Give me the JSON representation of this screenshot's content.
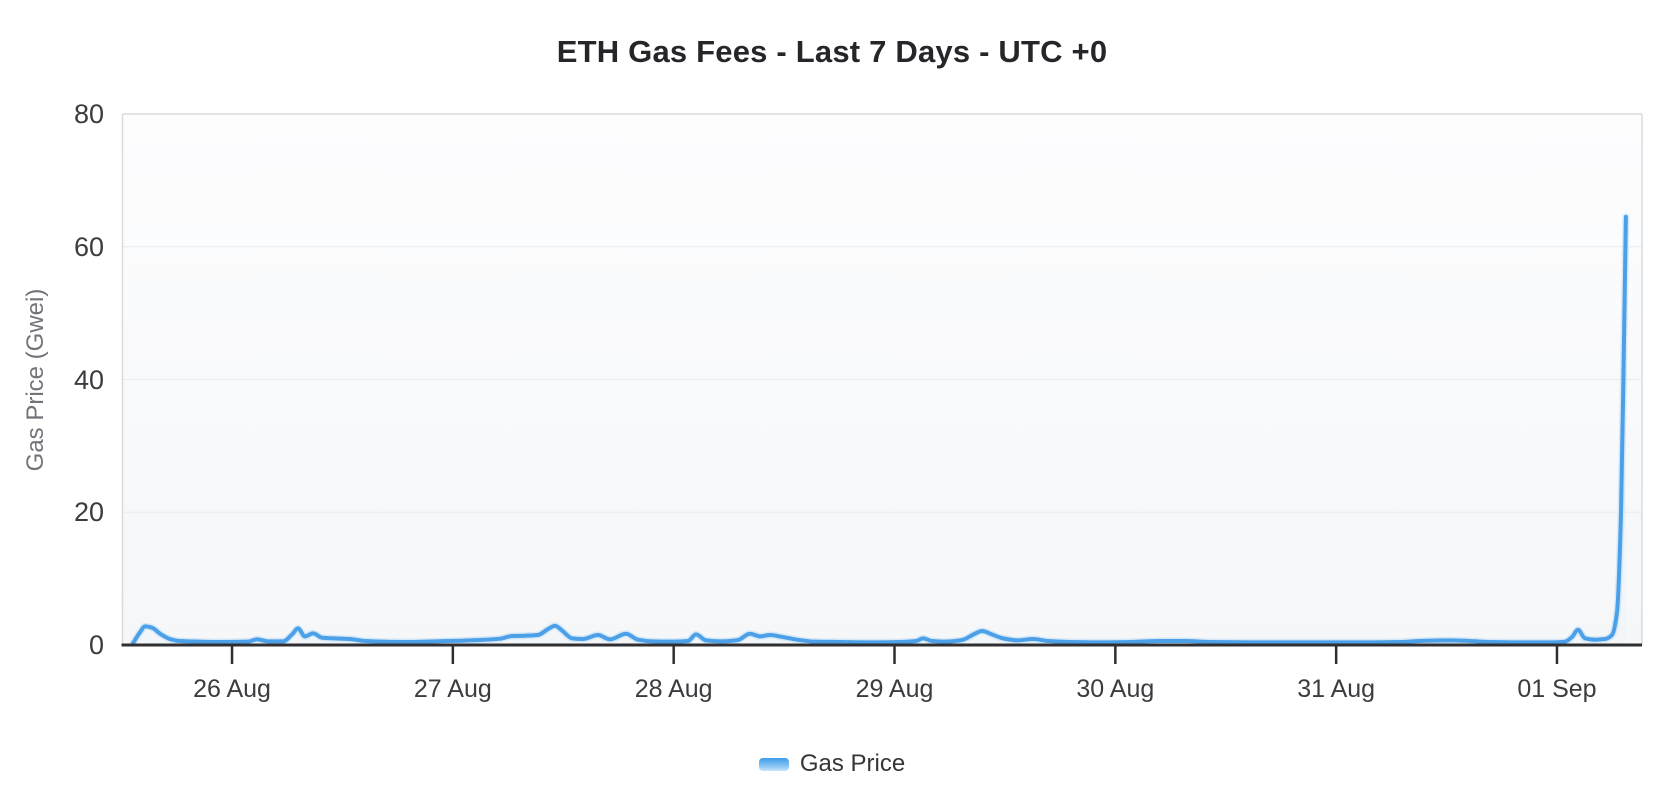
{
  "chart_data": {
    "type": "line",
    "title": "ETH Gas Fees - Last 7 Days - UTC +0",
    "xlabel": "",
    "ylabel": "Gas Price (Gwei)",
    "ylim": [
      0,
      80
    ],
    "y_ticks": [
      0,
      20,
      40,
      60,
      80
    ],
    "x_unit": "days since 25 Aug 00:00 UTC",
    "x_range": [
      0.504,
      7.385
    ],
    "x_tick_positions": [
      1,
      2,
      3,
      4,
      5,
      6,
      7
    ],
    "x_tick_labels": [
      "26 Aug",
      "27 Aug",
      "28 Aug",
      "29 Aug",
      "30 Aug",
      "31 Aug",
      "01 Sep"
    ],
    "grid": true,
    "legend_position": "bottom",
    "series": [
      {
        "name": "Gas Price",
        "color": "#4BA0E8",
        "points": [
          [
            0.552,
            0.3
          ],
          [
            0.583,
            1.9
          ],
          [
            0.606,
            2.8
          ],
          [
            0.638,
            2.6
          ],
          [
            0.674,
            1.7
          ],
          [
            0.719,
            0.9
          ],
          [
            0.764,
            0.6
          ],
          [
            0.855,
            0.5
          ],
          [
            0.968,
            0.45
          ],
          [
            1.072,
            0.5
          ],
          [
            1.113,
            0.85
          ],
          [
            1.163,
            0.55
          ],
          [
            1.231,
            0.55
          ],
          [
            1.272,
            1.6
          ],
          [
            1.299,
            2.5
          ],
          [
            1.33,
            1.3
          ],
          [
            1.367,
            1.75
          ],
          [
            1.408,
            1.1
          ],
          [
            1.466,
            1.0
          ],
          [
            1.534,
            0.9
          ],
          [
            1.602,
            0.6
          ],
          [
            1.693,
            0.5
          ],
          [
            1.806,
            0.45
          ],
          [
            1.919,
            0.55
          ],
          [
            2.032,
            0.65
          ],
          [
            2.123,
            0.75
          ],
          [
            2.213,
            0.95
          ],
          [
            2.268,
            1.35
          ],
          [
            2.327,
            1.4
          ],
          [
            2.385,
            1.5
          ],
          [
            2.431,
            2.4
          ],
          [
            2.463,
            2.9
          ],
          [
            2.494,
            2.2
          ],
          [
            2.54,
            1.0
          ],
          [
            2.589,
            0.9
          ],
          [
            2.657,
            1.5
          ],
          [
            2.712,
            0.85
          ],
          [
            2.784,
            1.7
          ],
          [
            2.838,
            0.8
          ],
          [
            2.902,
            0.55
          ],
          [
            2.992,
            0.5
          ],
          [
            3.065,
            0.6
          ],
          [
            3.101,
            1.6
          ],
          [
            3.146,
            0.7
          ],
          [
            3.219,
            0.55
          ],
          [
            3.291,
            0.75
          ],
          [
            3.345,
            1.7
          ],
          [
            3.391,
            1.3
          ],
          [
            3.436,
            1.5
          ],
          [
            3.495,
            1.2
          ],
          [
            3.558,
            0.8
          ],
          [
            3.64,
            0.5
          ],
          [
            3.753,
            0.45
          ],
          [
            3.889,
            0.4
          ],
          [
            4.025,
            0.45
          ],
          [
            4.097,
            0.6
          ],
          [
            4.129,
            1.0
          ],
          [
            4.17,
            0.6
          ],
          [
            4.229,
            0.5
          ],
          [
            4.306,
            0.75
          ],
          [
            4.364,
            1.7
          ],
          [
            4.396,
            2.1
          ],
          [
            4.441,
            1.6
          ],
          [
            4.491,
            1.0
          ],
          [
            4.559,
            0.7
          ],
          [
            4.627,
            0.9
          ],
          [
            4.695,
            0.6
          ],
          [
            4.795,
            0.45
          ],
          [
            4.93,
            0.4
          ],
          [
            5.066,
            0.45
          ],
          [
            5.202,
            0.6
          ],
          [
            5.315,
            0.6
          ],
          [
            5.428,
            0.45
          ],
          [
            5.609,
            0.4
          ],
          [
            5.791,
            0.4
          ],
          [
            5.972,
            0.4
          ],
          [
            6.153,
            0.4
          ],
          [
            6.289,
            0.45
          ],
          [
            6.402,
            0.65
          ],
          [
            6.515,
            0.7
          ],
          [
            6.606,
            0.6
          ],
          [
            6.696,
            0.45
          ],
          [
            6.832,
            0.4
          ],
          [
            6.968,
            0.4
          ],
          [
            7.036,
            0.5
          ],
          [
            7.068,
            1.2
          ],
          [
            7.095,
            2.3
          ],
          [
            7.127,
            1.0
          ],
          [
            7.172,
            0.8
          ],
          [
            7.217,
            0.9
          ],
          [
            7.249,
            1.5
          ],
          [
            7.272,
            5.0
          ],
          [
            7.29,
            20.0
          ],
          [
            7.303,
            45.0
          ],
          [
            7.312,
            64.5
          ]
        ]
      }
    ]
  },
  "legend": {
    "label": "Gas Price"
  },
  "style": {
    "line_color": "#4BA0E8",
    "line_halo": "#BBDCF6",
    "area_fill_top": "rgba(120,180,235,0.14)",
    "area_fill_bottom": "rgba(120,180,235,0.02)",
    "plot_bg_top": "#fdfdfe",
    "plot_bg_bottom": "#f5f7f9",
    "grid_color": "#e9ebed",
    "frame_color": "#d9dbde",
    "axis_color": "#2f2f31",
    "legend_marker_top": "#3E9BEA",
    "legend_marker_mid": "#7FC0F1",
    "legend_marker_bottom": "#C8E4FA"
  }
}
